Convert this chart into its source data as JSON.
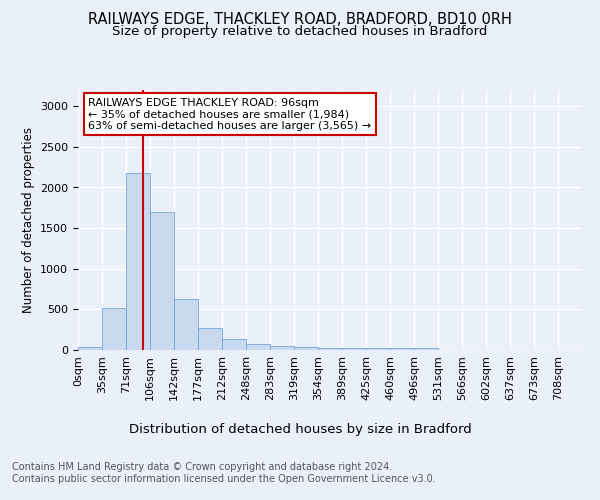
{
  "title1": "RAILWAYS EDGE, THACKLEY ROAD, BRADFORD, BD10 0RH",
  "title2": "Size of property relative to detached houses in Bradford",
  "xlabel": "Distribution of detached houses by size in Bradford",
  "ylabel": "Number of detached properties",
  "bin_labels": [
    "0sqm",
    "35sqm",
    "71sqm",
    "106sqm",
    "142sqm",
    "177sqm",
    "212sqm",
    "248sqm",
    "283sqm",
    "319sqm",
    "354sqm",
    "389sqm",
    "425sqm",
    "460sqm",
    "496sqm",
    "531sqm",
    "566sqm",
    "602sqm",
    "637sqm",
    "673sqm",
    "708sqm"
  ],
  "bar_heights": [
    35,
    520,
    2175,
    1700,
    630,
    275,
    130,
    75,
    55,
    40,
    30,
    25,
    25,
    22,
    30,
    5,
    5,
    5,
    5,
    5,
    0
  ],
  "bar_color": "#c9d9f0",
  "bar_edge_color": "#6699cc",
  "vline_color": "#cc0000",
  "annotation_text": "RAILWAYS EDGE THACKLEY ROAD: 96sqm\n← 35% of detached houses are smaller (1,984)\n63% of semi-detached houses are larger (3,565) →",
  "annotation_box_color": "#ffffff",
  "annotation_box_edge": "#cc0000",
  "ylim": [
    0,
    3200
  ],
  "yticks": [
    0,
    500,
    1000,
    1500,
    2000,
    2500,
    3000
  ],
  "footer_text": "Contains HM Land Registry data © Crown copyright and database right 2024.\nContains public sector information licensed under the Open Government Licence v3.0.",
  "bg_color": "#eaf0fa",
  "plot_bg_color": "#eaf0fa",
  "grid_color": "#ffffff",
  "title1_fontsize": 10.5,
  "title2_fontsize": 9.5,
  "xlabel_fontsize": 9.5,
  "ylabel_fontsize": 8.5,
  "tick_fontsize": 8,
  "footer_fontsize": 7,
  "annotation_fontsize": 8
}
